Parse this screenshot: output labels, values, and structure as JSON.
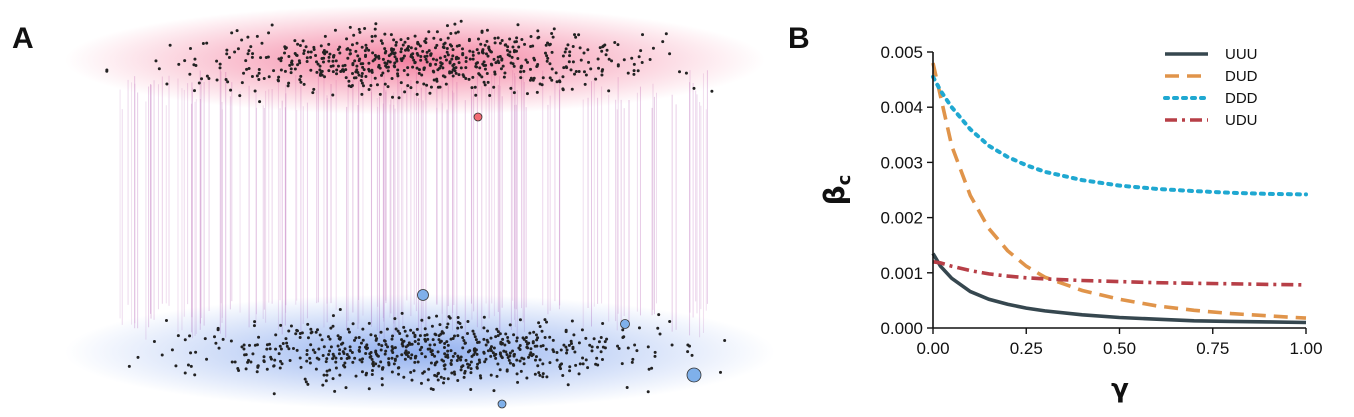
{
  "panels": {
    "a_label": "A",
    "b_label": "B"
  },
  "network": {
    "top_layer_color": "#f0557f",
    "bottom_layer_color": "#6f97ea",
    "interlayer_color": "#c98ac8",
    "node_color": "#222222"
  },
  "chart_data": {
    "type": "line",
    "xlabel": "γ",
    "ylabel": "β",
    "ylabel_sub": "c",
    "xlim": [
      0,
      1
    ],
    "ylim": [
      0,
      0.005
    ],
    "x_ticks": [
      "0.00",
      "0.25",
      "0.50",
      "0.75",
      "1.00"
    ],
    "y_ticks": [
      "0.000",
      "0.001",
      "0.002",
      "0.003",
      "0.004",
      "0.005"
    ],
    "x": [
      0.0,
      0.02,
      0.05,
      0.1,
      0.15,
      0.2,
      0.25,
      0.3,
      0.4,
      0.5,
      0.6,
      0.7,
      0.8,
      0.9,
      1.0
    ],
    "series": [
      {
        "name": "UUU",
        "style": "solid",
        "color": "#36474f",
        "values": [
          0.00135,
          0.00112,
          0.0009,
          0.00066,
          0.00052,
          0.00043,
          0.00036,
          0.00031,
          0.00024,
          0.00019,
          0.00016,
          0.00013,
          0.00012,
          0.00011,
          0.0001
        ]
      },
      {
        "name": "DUD",
        "style": "dashed",
        "color": "#e0944a",
        "values": [
          0.0048,
          0.0042,
          0.0033,
          0.0024,
          0.0018,
          0.0014,
          0.00112,
          0.00092,
          0.00068,
          0.00052,
          0.0004,
          0.00032,
          0.00026,
          0.00022,
          0.00018
        ]
      },
      {
        "name": "DDD",
        "style": "dotted",
        "color": "#1fa8d1",
        "values": [
          0.00455,
          0.0043,
          0.004,
          0.0036,
          0.0033,
          0.0031,
          0.00295,
          0.00283,
          0.00268,
          0.00258,
          0.00252,
          0.00248,
          0.00245,
          0.00243,
          0.00242
        ]
      },
      {
        "name": "UDU",
        "style": "dashdot",
        "color": "#b73f47",
        "values": [
          0.0012,
          0.00118,
          0.00112,
          0.00104,
          0.00098,
          0.00094,
          0.00091,
          0.00089,
          0.00086,
          0.00084,
          0.00082,
          0.00081,
          0.0008,
          0.00079,
          0.00078
        ]
      }
    ],
    "legend_position": "top-right",
    "grid": false
  }
}
